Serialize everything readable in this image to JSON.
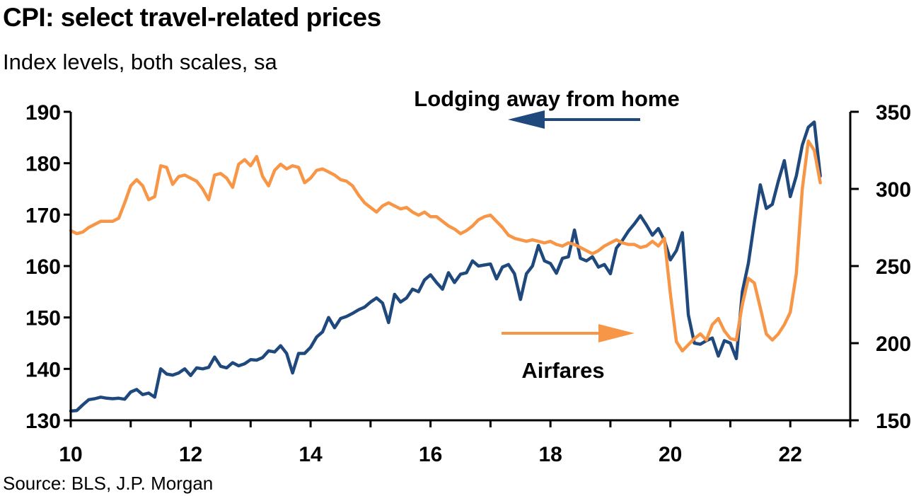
{
  "chart_data": {
    "type": "line",
    "title": "CPI: select travel-related prices",
    "subtitle": "Index levels, both scales, sa",
    "source": "Source: BLS, J.P. Morgan",
    "x_ticks": [
      "10",
      "12",
      "14",
      "16",
      "18",
      "20",
      "22"
    ],
    "x_range": [
      2010,
      2023
    ],
    "y_left": {
      "range": [
        130,
        190
      ],
      "ticks": [
        "130",
        "140",
        "150",
        "160",
        "170",
        "180",
        "190"
      ]
    },
    "y_right": {
      "range": [
        150,
        350
      ],
      "ticks": [
        "150",
        "200",
        "250",
        "300",
        "350"
      ]
    },
    "colors": {
      "lodging": "#1f497d",
      "airfares": "#f79646",
      "axis": "#000000"
    },
    "annotations": {
      "lodging": "Lodging away from home",
      "airfares": "Airfares"
    },
    "series": [
      {
        "key": "lodging",
        "axis": "left",
        "x": [
          2010.0,
          2010.1,
          2010.2,
          2010.3,
          2010.4,
          2010.5,
          2010.6,
          2010.7,
          2010.8,
          2010.9,
          2011.0,
          2011.1,
          2011.2,
          2011.3,
          2011.4,
          2011.5,
          2011.6,
          2011.7,
          2011.8,
          2011.9,
          2012.0,
          2012.1,
          2012.2,
          2012.3,
          2012.4,
          2012.5,
          2012.6,
          2012.7,
          2012.8,
          2012.9,
          2013.0,
          2013.1,
          2013.2,
          2013.3,
          2013.4,
          2013.5,
          2013.6,
          2013.7,
          2013.8,
          2013.9,
          2014.0,
          2014.1,
          2014.2,
          2014.3,
          2014.4,
          2014.5,
          2014.6,
          2014.7,
          2014.8,
          2014.9,
          2015.0,
          2015.1,
          2015.2,
          2015.3,
          2015.4,
          2015.5,
          2015.6,
          2015.7,
          2015.8,
          2015.9,
          2016.0,
          2016.1,
          2016.2,
          2016.3,
          2016.4,
          2016.5,
          2016.6,
          2016.7,
          2016.8,
          2016.9,
          2017.0,
          2017.1,
          2017.2,
          2017.3,
          2017.4,
          2017.5,
          2017.6,
          2017.7,
          2017.8,
          2017.9,
          2018.0,
          2018.1,
          2018.2,
          2018.3,
          2018.4,
          2018.5,
          2018.6,
          2018.7,
          2018.8,
          2018.9,
          2019.0,
          2019.1,
          2019.2,
          2019.3,
          2019.4,
          2019.5,
          2019.6,
          2019.7,
          2019.8,
          2019.9,
          2020.0,
          2020.1,
          2020.2,
          2020.3,
          2020.4,
          2020.5,
          2020.6,
          2020.7,
          2020.8,
          2020.9,
          2021.0,
          2021.1,
          2021.2,
          2021.3,
          2021.4,
          2021.5,
          2021.6,
          2021.7,
          2021.8,
          2021.9,
          2022.0,
          2022.1,
          2022.2,
          2022.3,
          2022.4,
          2022.5
        ],
        "values": [
          131.8,
          131.9,
          133.0,
          134.0,
          134.2,
          134.5,
          134.3,
          134.2,
          134.3,
          134.1,
          135.5,
          136.0,
          135.0,
          135.3,
          134.5,
          140.0,
          139.0,
          138.8,
          139.2,
          140.0,
          138.7,
          140.2,
          140.0,
          140.3,
          142.3,
          140.5,
          140.2,
          141.2,
          140.6,
          141.0,
          141.8,
          141.7,
          142.2,
          143.5,
          143.3,
          144.5,
          143.0,
          139.2,
          143.0,
          143.0,
          144.2,
          146.2,
          147.2,
          150.0,
          148.0,
          149.8,
          150.2,
          150.8,
          151.5,
          152.0,
          153.0,
          153.8,
          152.8,
          149.0,
          154.5,
          153.0,
          153.8,
          155.5,
          155.0,
          157.3,
          158.3,
          156.8,
          155.5,
          158.7,
          156.8,
          158.4,
          158.7,
          161.0,
          160.0,
          160.2,
          160.4,
          157.5,
          159.8,
          160.3,
          158.5,
          153.5,
          158.5,
          160.0,
          164.0,
          161.0,
          160.5,
          158.6,
          161.5,
          161.8,
          167.0,
          161.5,
          161.0,
          161.8,
          159.8,
          160.3,
          158.5,
          163.5,
          165.0,
          166.8,
          168.2,
          169.8,
          168.0,
          166.0,
          167.3,
          165.0,
          161.2,
          163.0,
          166.5,
          150.5,
          145.0,
          144.8,
          145.5,
          146.0,
          142.5,
          145.5,
          145.0,
          142.0,
          155.0,
          160.5,
          168.5,
          175.8,
          171.2,
          172.0,
          176.5,
          180.5,
          173.5,
          177.5,
          183.5,
          187.0,
          188.0,
          177.5
        ]
      },
      {
        "key": "airfares",
        "axis": "right",
        "x": [
          2010.0,
          2010.1,
          2010.2,
          2010.3,
          2010.4,
          2010.5,
          2010.6,
          2010.7,
          2010.8,
          2010.9,
          2011.0,
          2011.1,
          2011.2,
          2011.3,
          2011.4,
          2011.5,
          2011.6,
          2011.7,
          2011.8,
          2011.9,
          2012.0,
          2012.1,
          2012.2,
          2012.3,
          2012.4,
          2012.5,
          2012.6,
          2012.7,
          2012.8,
          2012.9,
          2013.0,
          2013.1,
          2013.2,
          2013.3,
          2013.4,
          2013.5,
          2013.6,
          2013.7,
          2013.8,
          2013.9,
          2014.0,
          2014.1,
          2014.2,
          2014.3,
          2014.4,
          2014.5,
          2014.6,
          2014.7,
          2014.8,
          2014.9,
          2015.0,
          2015.1,
          2015.2,
          2015.3,
          2015.4,
          2015.5,
          2015.6,
          2015.7,
          2015.8,
          2015.9,
          2016.0,
          2016.1,
          2016.2,
          2016.3,
          2016.4,
          2016.5,
          2016.6,
          2016.7,
          2016.8,
          2016.9,
          2017.0,
          2017.1,
          2017.2,
          2017.3,
          2017.4,
          2017.5,
          2017.6,
          2017.7,
          2017.8,
          2017.9,
          2018.0,
          2018.1,
          2018.2,
          2018.3,
          2018.4,
          2018.5,
          2018.6,
          2018.7,
          2018.8,
          2018.9,
          2019.0,
          2019.1,
          2019.2,
          2019.3,
          2019.4,
          2019.5,
          2019.6,
          2019.7,
          2019.8,
          2019.9,
          2020.0,
          2020.1,
          2020.2,
          2020.3,
          2020.4,
          2020.5,
          2020.6,
          2020.7,
          2020.8,
          2020.9,
          2021.0,
          2021.1,
          2021.2,
          2021.3,
          2021.4,
          2021.5,
          2021.6,
          2021.7,
          2021.8,
          2021.9,
          2022.0,
          2022.1,
          2022.2,
          2022.3,
          2022.4,
          2022.5
        ],
        "values": [
          273,
          271,
          272,
          275,
          277,
          279,
          279,
          279,
          281,
          291,
          302,
          306,
          302,
          293,
          295,
          315,
          314,
          303,
          308,
          309,
          307,
          305,
          300,
          293,
          309,
          310,
          307,
          301,
          316,
          319,
          315,
          321,
          308,
          302,
          312,
          316,
          313,
          315,
          314,
          304,
          307,
          312,
          313,
          311,
          309,
          306,
          305,
          302,
          296,
          291,
          288,
          285,
          289,
          291,
          289,
          287,
          288,
          285,
          283,
          285,
          282,
          282,
          279,
          276,
          274,
          271,
          273,
          276,
          280,
          282,
          283,
          279,
          275,
          270,
          268,
          267,
          266,
          267,
          266,
          265,
          266,
          264,
          263,
          265,
          264,
          262,
          260,
          258,
          260,
          263,
          265,
          267,
          265,
          264,
          264,
          262,
          263,
          266,
          263,
          268,
          232,
          201,
          195,
          199,
          203,
          206,
          202,
          212,
          216,
          208,
          203,
          202,
          225,
          242,
          239,
          223,
          206,
          202,
          206,
          212,
          220,
          245,
          300,
          331,
          325,
          304
        ]
      }
    ]
  }
}
